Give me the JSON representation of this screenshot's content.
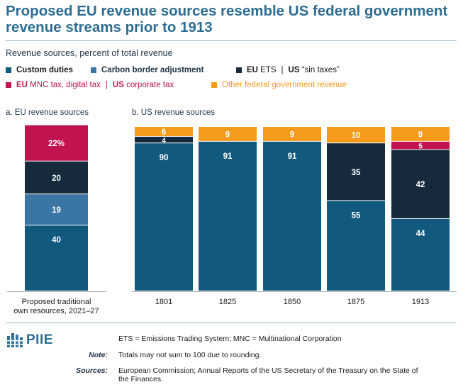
{
  "title": "Proposed EU revenue sources resemble US federal government revenue streams prior to 1913",
  "subtitle": "Revenue sources, percent of total revenue",
  "legend": {
    "custom_duties": "Custom duties",
    "carbon_border": "Carbon border adjustment",
    "eu_ets_eu": "EU",
    "eu_ets_rest": " ETS",
    "sep": "|",
    "sin_us": "US",
    "sin_rest": " “sin taxes”",
    "mnc_eu": "EU",
    "mnc_rest": " MNC tax, digital tax",
    "corp_us": "US",
    "corp_rest": " corporate tax",
    "other": "Other federal government revenue"
  },
  "colors": {
    "custom_duties": "#115a7e",
    "carbon_border": "#3a75a3",
    "ets_sin": "#162a3b",
    "mnc_corp": "#c0134f",
    "other": "#f69b1d",
    "title": "#2d6d92"
  },
  "panels": {
    "eu_title": "a. EU revenue sources",
    "us_title": "b. US revenue sources"
  },
  "chart_data": [
    {
      "type": "bar",
      "stacked": true,
      "title": "a. EU revenue sources",
      "categories": [
        "Proposed traditional own resources, 2021–27"
      ],
      "category_lines": [
        [
          "Proposed traditional",
          "own resources, 2021–27"
        ]
      ],
      "series": [
        {
          "name": "Custom duties",
          "key": "custom_duties",
          "values": [
            40
          ]
        },
        {
          "name": "Carbon border adjustment",
          "key": "carbon_border",
          "values": [
            19
          ]
        },
        {
          "name": "EU ETS",
          "key": "ets_sin",
          "values": [
            20
          ]
        },
        {
          "name": "EU MNC tax, digital tax",
          "key": "mnc_corp",
          "values": [
            22
          ]
        }
      ],
      "labels": [
        [
          "40"
        ],
        [
          "19"
        ],
        [
          "20"
        ],
        [
          "22%"
        ]
      ],
      "ylim": [
        0,
        100
      ]
    },
    {
      "type": "bar",
      "stacked": true,
      "title": "b. US revenue sources",
      "categories": [
        "1801",
        "1825",
        "1850",
        "1875",
        "1913"
      ],
      "series": [
        {
          "name": "Custom duties",
          "key": "custom_duties",
          "values": [
            90,
            91,
            91,
            55,
            44
          ]
        },
        {
          "name": "US “sin taxes”",
          "key": "ets_sin",
          "values": [
            4,
            0,
            0,
            35,
            42
          ]
        },
        {
          "name": "US corporate tax",
          "key": "mnc_corp",
          "values": [
            0,
            0,
            0,
            0,
            5
          ]
        },
        {
          "name": "Other federal government revenue",
          "key": "other",
          "values": [
            6,
            9,
            9,
            10,
            9
          ]
        }
      ],
      "labels": [
        [
          "90",
          "91",
          "91",
          "55",
          "44"
        ],
        [
          "4",
          "",
          "",
          "35",
          "42"
        ],
        [
          "",
          "",
          "",
          "",
          "5"
        ],
        [
          "6",
          "9",
          "9",
          "10",
          "9"
        ]
      ],
      "ylim": [
        0,
        100
      ]
    }
  ],
  "footer": {
    "logo": "PIIE",
    "definitions": "ETS = Emissions Trading System; MNC = Multinational Corporation",
    "note_label": "Note:",
    "note_text": "Totals may not sum to 100 due to rounding.",
    "sources_label": "Sources:",
    "sources_line1": "European Commission; Annual Reports of the US Secretary of the Treasury on the State of",
    "sources_line2": "the Finances."
  }
}
